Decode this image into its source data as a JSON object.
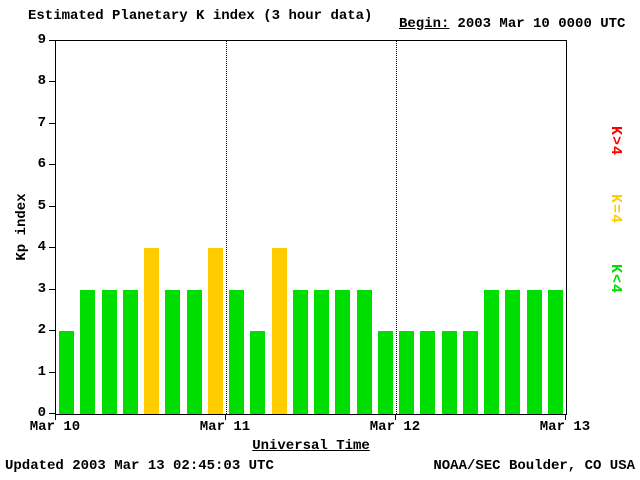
{
  "header": {
    "title": "Estimated Planetary K index (3 hour data)",
    "begin_label": "Begin:",
    "begin_value": "2003 Mar 10 0000 UTC"
  },
  "chart_data": {
    "type": "bar",
    "title": "Estimated Planetary K index (3 hour data)",
    "begin": "2003 Mar 10 0000 UTC",
    "xlabel": "Universal Time",
    "ylabel": "Kp index",
    "ylim": [
      0,
      9
    ],
    "y_ticks": [
      0,
      1,
      2,
      3,
      4,
      5,
      6,
      7,
      8,
      9
    ],
    "x_ticks": [
      "Mar 10",
      "Mar 11",
      "Mar 12",
      "Mar 13"
    ],
    "interval_hours": 3,
    "values": [
      2,
      3,
      3,
      3,
      4,
      3,
      3,
      4,
      3,
      2,
      4,
      3,
      3,
      3,
      3,
      2,
      2,
      2,
      2,
      2,
      3,
      3,
      3,
      3
    ],
    "day_dividers": [
      8,
      16
    ],
    "grid": "dotted vertical lines at day boundaries",
    "legend_position": "right, rotated",
    "colors": {
      "low": "#00dd00",
      "mid": "#ffcc00",
      "high": "#ff0000"
    },
    "legend": [
      {
        "label": "K>4",
        "color": "#ff0000"
      },
      {
        "label": "K=4",
        "color": "#ffcc00"
      },
      {
        "label": "K<4",
        "color": "#00dd00"
      }
    ]
  },
  "footer": {
    "updated": "Updated 2003 Mar 13 02:45:03 UTC",
    "source": "NOAA/SEC Boulder, CO USA"
  }
}
